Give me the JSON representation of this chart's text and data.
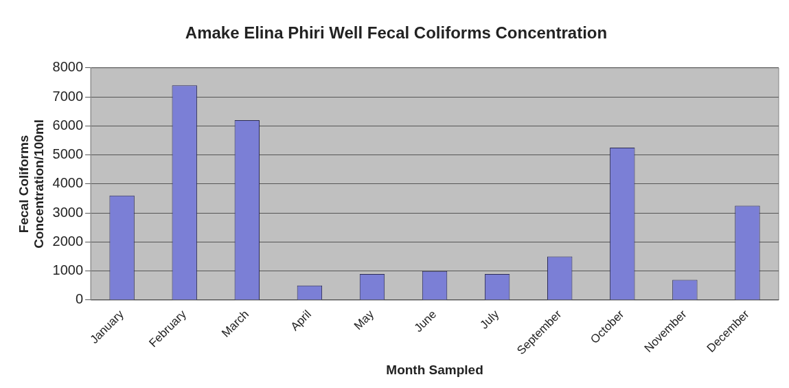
{
  "chart_data": {
    "type": "bar",
    "title": "Amake Elina Phiri Well Fecal Coliforms Concentration",
    "xlabel": "Month Sampled",
    "ylabel": "Fecal Coliforms Concentration/100ml",
    "categories": [
      "January",
      "February",
      "March",
      "April",
      "May",
      "June",
      "July",
      "September",
      "October",
      "November",
      "December"
    ],
    "values": [
      3600,
      7400,
      6200,
      500,
      900,
      1000,
      900,
      1500,
      5250,
      700,
      3250
    ],
    "color": "#7b7fd6",
    "ylim": [
      0,
      8000
    ],
    "yticks": [
      0,
      1000,
      2000,
      3000,
      4000,
      5000,
      6000,
      7000,
      8000
    ],
    "grid": "y",
    "legend": false
  }
}
